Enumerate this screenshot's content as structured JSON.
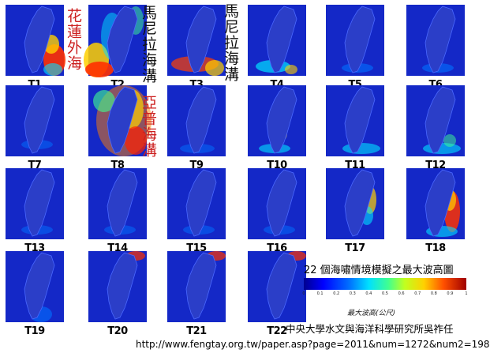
{
  "panels": [
    "T1",
    "T2",
    "T3",
    "T4",
    "T5",
    "T6",
    "T7",
    "T8",
    "T9",
    "T10",
    "T11",
    "T12",
    "T13",
    "T14",
    "T15",
    "T16",
    "T17",
    "T18",
    "T19",
    "T20",
    "T21",
    "T22"
  ],
  "annotations": {
    "hualien": "花蓮外海",
    "manila_1": "馬尼拉海溝",
    "manila_2": "馬尼拉海溝",
    "yap": "亞普海溝"
  },
  "caption": "22 個海嘯情境模擬之最大波高圖",
  "colorbar": {
    "label": "最大波高(公尺)",
    "ticks": [
      "0",
      "0.1",
      "0.2",
      "0.3",
      "0.4",
      "0.5",
      "0.6",
      "0.7",
      "0.8",
      "0.9",
      "1"
    ],
    "colors": {
      "low": "#00008f",
      "mid": "#40ff90",
      "high": "#a00000"
    }
  },
  "credit": "中央大學水文與海洋科學研究所吳祚任",
  "url": "http://www.fengtay.org.tw/paper.asp?page=2011&num=1272&num2=198"
}
